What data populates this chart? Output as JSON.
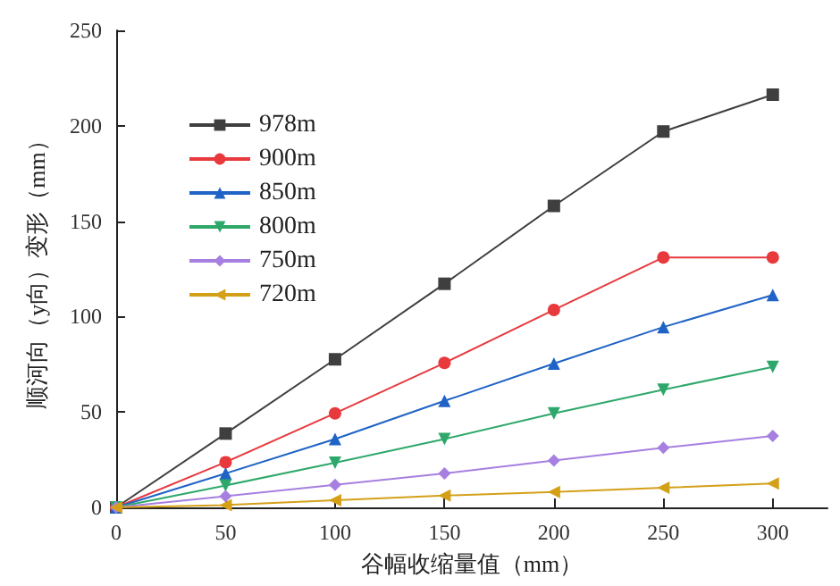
{
  "chart_data": {
    "type": "line",
    "xlabel": "谷幅收缩量值（mm）",
    "ylabel": "顺河向（y向）变形（mm）",
    "x": [
      0,
      50,
      100,
      150,
      200,
      250,
      300
    ],
    "series": [
      {
        "name": "978m",
        "color": "#3f3f3f",
        "marker": "square",
        "values": [
          0,
          38.7,
          77.6,
          117.2,
          158,
          197,
          216.3
        ]
      },
      {
        "name": "900m",
        "color": "#e8393d",
        "marker": "circle",
        "values": [
          0,
          23.7,
          49.3,
          75.7,
          103.5,
          131,
          131
        ]
      },
      {
        "name": "850m",
        "color": "#1f63c6",
        "marker": "triangle",
        "values": [
          0,
          17.8,
          35.8,
          55.8,
          75.4,
          94.5,
          111.3
        ]
      },
      {
        "name": "800m",
        "color": "#2ea86a",
        "marker": "triangle-down",
        "values": [
          0,
          11.5,
          23.4,
          35.8,
          49.3,
          61.7,
          73.6
        ]
      },
      {
        "name": "750m",
        "color": "#a77fe0",
        "marker": "diamond",
        "values": [
          0,
          5.9,
          11.8,
          17.8,
          24.6,
          31.2,
          37.4
        ]
      },
      {
        "name": "720m",
        "color": "#d4a018",
        "marker": "triangle-left",
        "values": [
          0,
          1.2,
          3.7,
          6.2,
          8.1,
          10.3,
          12.5
        ]
      }
    ],
    "xlim": [
      0,
      325
    ],
    "xticks": [
      0,
      50,
      100,
      150,
      200,
      250,
      300
    ],
    "ylim": [
      0,
      250
    ],
    "yticks": [
      0,
      50,
      100,
      150,
      200,
      250
    ],
    "grid": false,
    "legend": "top left",
    "line_style": "solid"
  }
}
